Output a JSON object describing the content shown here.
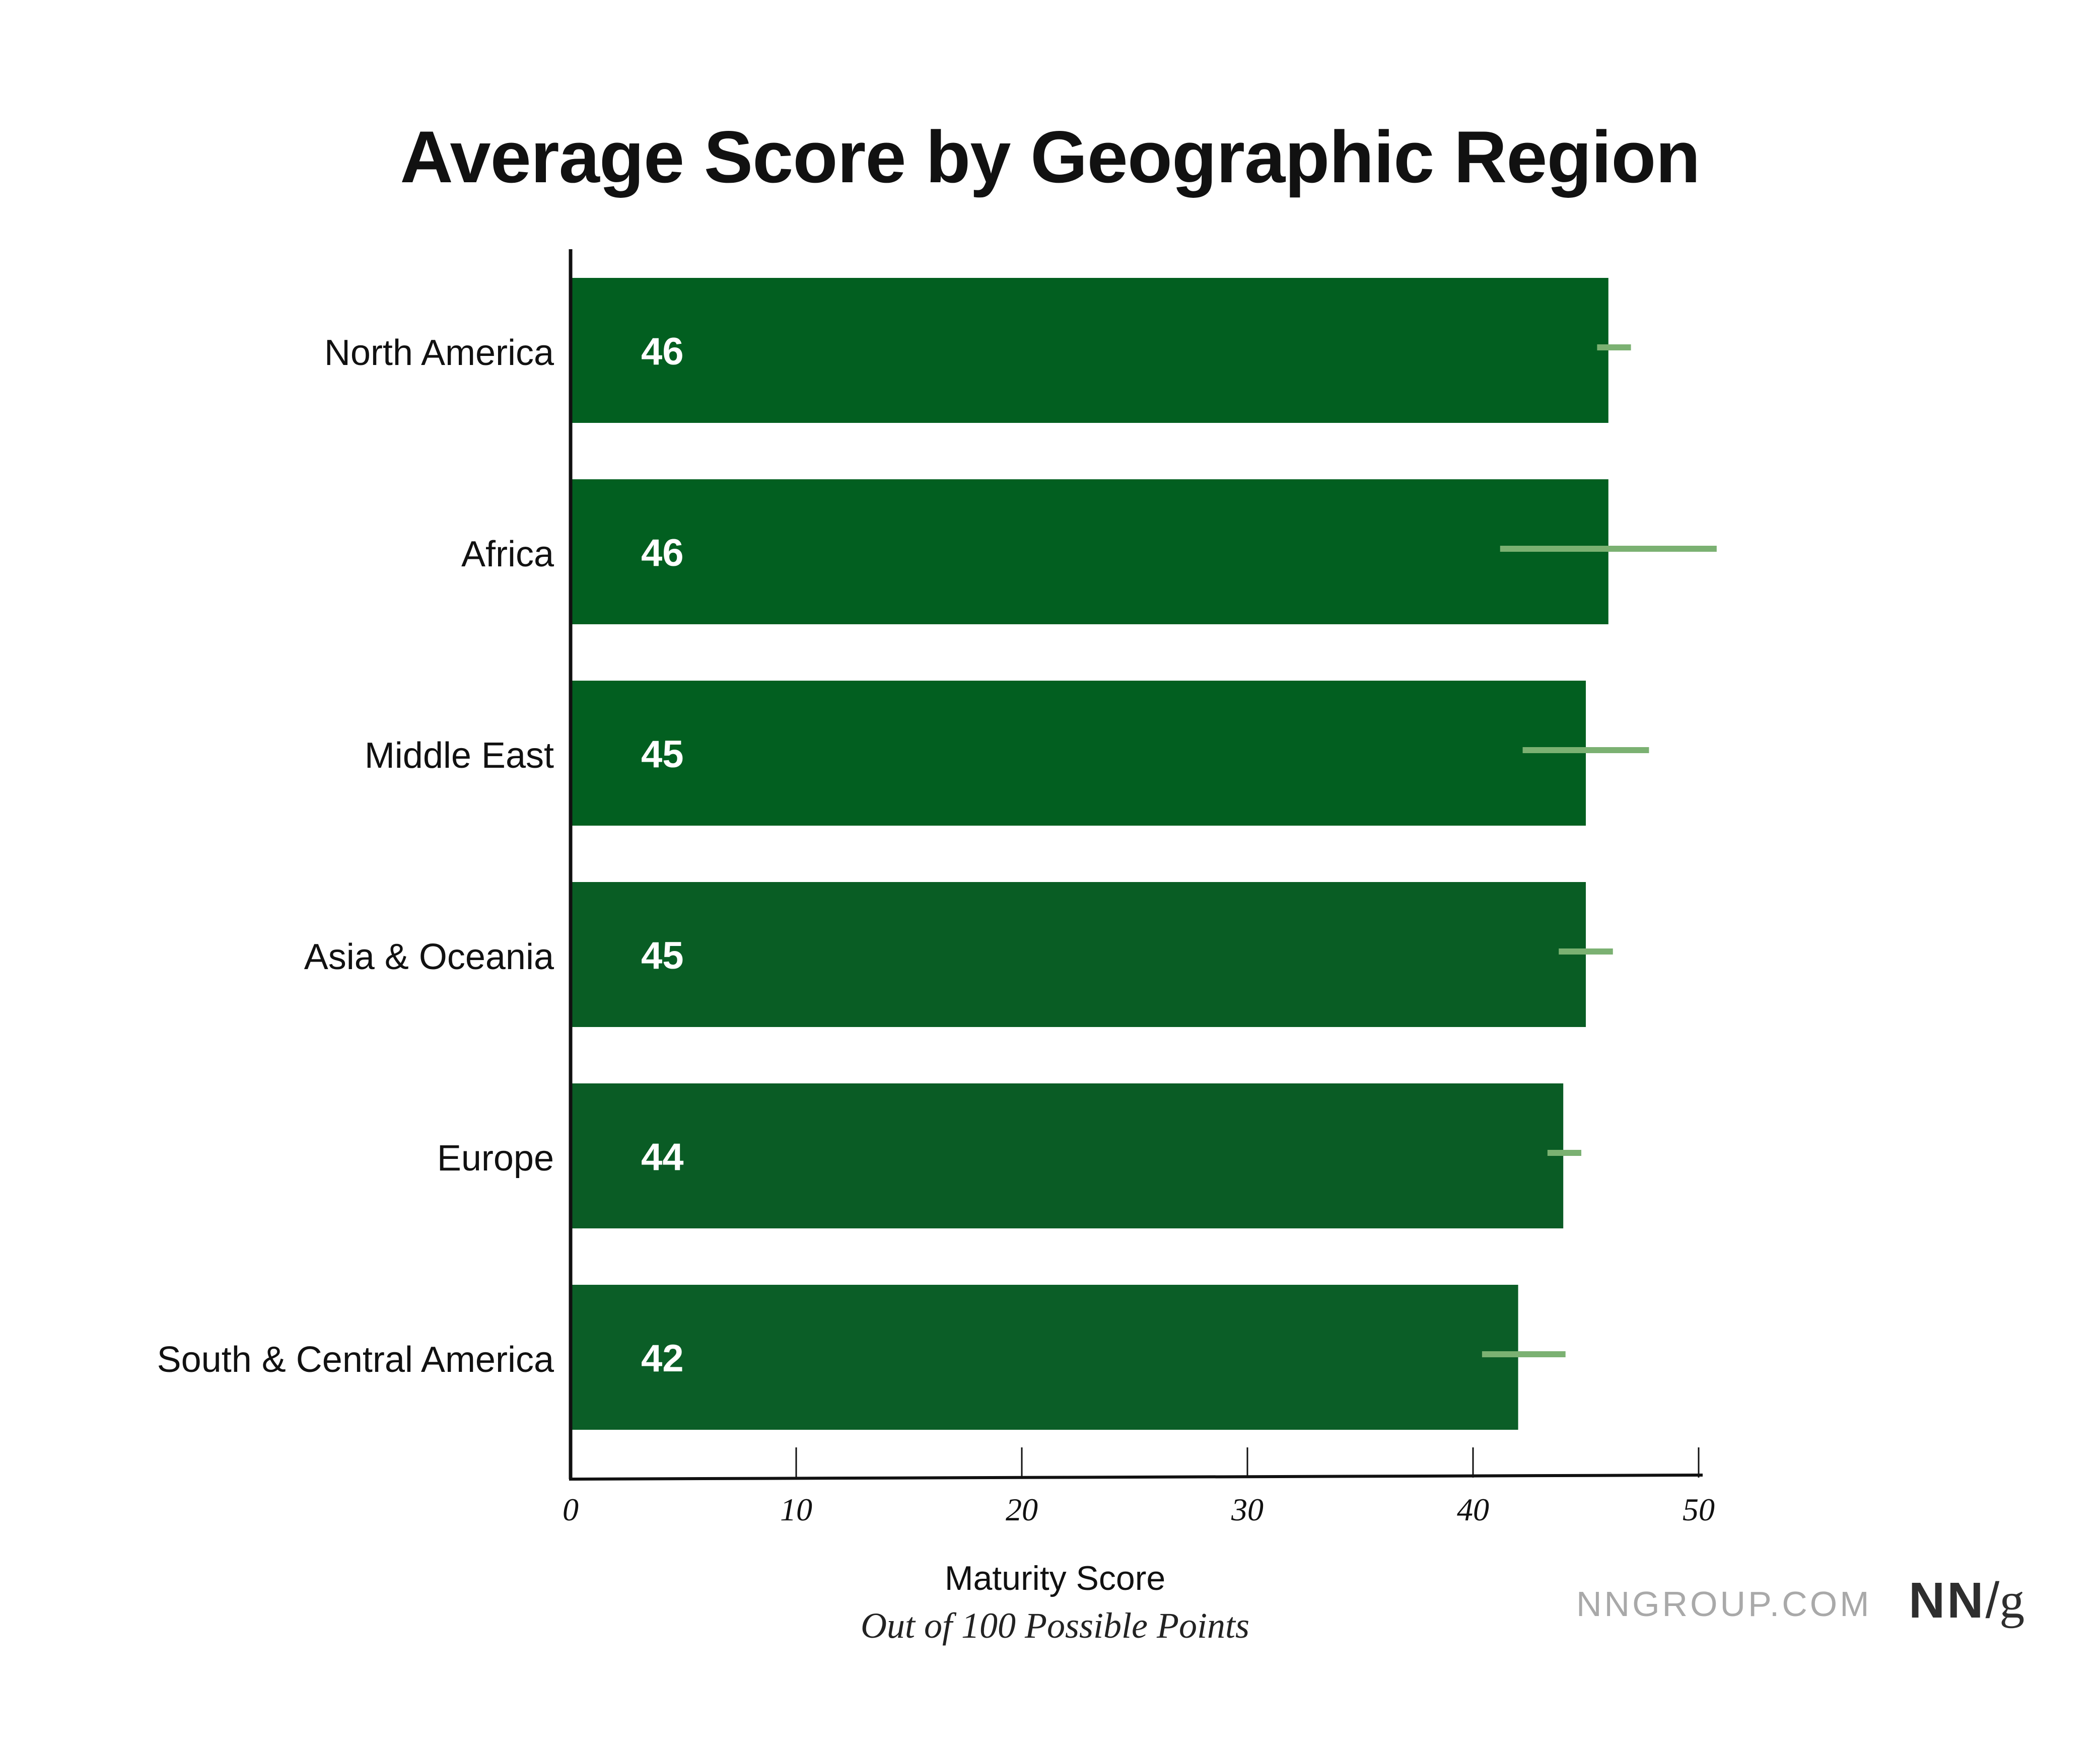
{
  "chart_data": {
    "type": "bar",
    "orientation": "horizontal",
    "title": "Average Score by Geographic Region",
    "xlabel": "Maturity Score",
    "xlabel_subtitle": "Out of 100 Possible Points",
    "ylabel": "",
    "categories": [
      "North America",
      "Africa",
      "Middle East",
      "Asia & Oceania",
      "Europe",
      "South & Central America"
    ],
    "values": [
      46,
      46,
      45,
      45,
      44,
      42
    ],
    "value_labels": [
      "46",
      "46",
      "45",
      "45",
      "44",
      "42"
    ],
    "error_bars": [
      {
        "low": 45.5,
        "high": 47.0
      },
      {
        "low": 41.2,
        "high": 50.8
      },
      {
        "low": 42.2,
        "high": 47.8
      },
      {
        "low": 43.8,
        "high": 46.2
      },
      {
        "low": 43.3,
        "high": 44.8
      },
      {
        "low": 40.4,
        "high": 44.1
      }
    ],
    "xlim": [
      0,
      50
    ],
    "xticks": [
      0,
      10,
      20,
      30,
      40,
      50
    ],
    "xtick_labels": [
      "0",
      "10",
      "20",
      "30",
      "40",
      "50"
    ],
    "grid": false,
    "legend": "none",
    "colors": {
      "bars": [
        "#025f20",
        "#025f20",
        "#025f20",
        "#095d24",
        "#0a5c25",
        "#0b5e27"
      ],
      "error_bar": "#7bb172",
      "axis": "#111111",
      "value_label": "#ffffff"
    }
  },
  "footer": {
    "site": "NNGROUP.COM",
    "logo_nn": "NN",
    "logo_slash": "/",
    "logo_g": "g"
  }
}
